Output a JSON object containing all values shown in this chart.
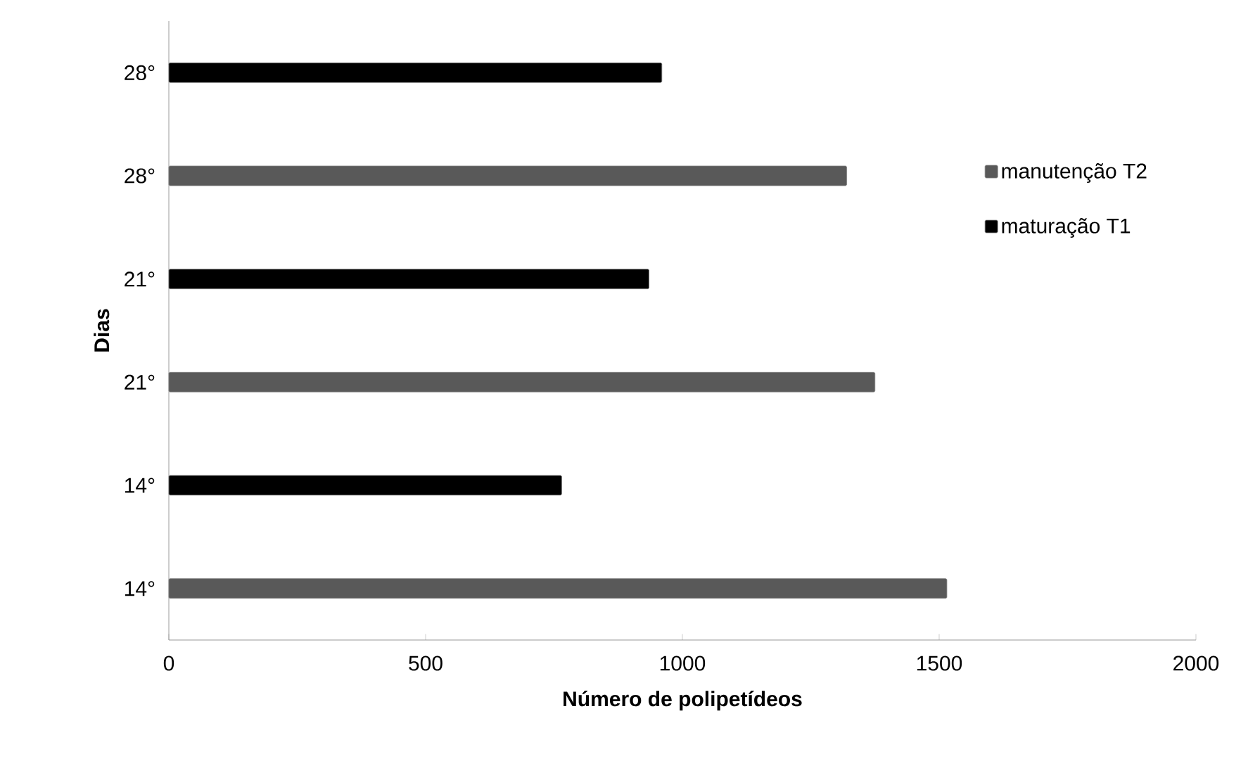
{
  "chart_data": {
    "type": "bar",
    "orientation": "horizontal",
    "xlabel": "Número de polipetídeos",
    "ylabel": "Dias",
    "categories": [
      "28°",
      "28°",
      "21°",
      "21°",
      "14°",
      "14°"
    ],
    "series": [
      {
        "name": "manutenção T2",
        "color": "#595959",
        "values": [
          null,
          1320,
          null,
          1375,
          null,
          1515
        ]
      },
      {
        "name": "maturação T1",
        "color": "#000000",
        "values": [
          960,
          null,
          935,
          null,
          765,
          null
        ]
      }
    ],
    "xlim": [
      0,
      2000
    ],
    "xticks": [
      0,
      500,
      1000,
      1500,
      2000
    ],
    "legend": "right"
  }
}
